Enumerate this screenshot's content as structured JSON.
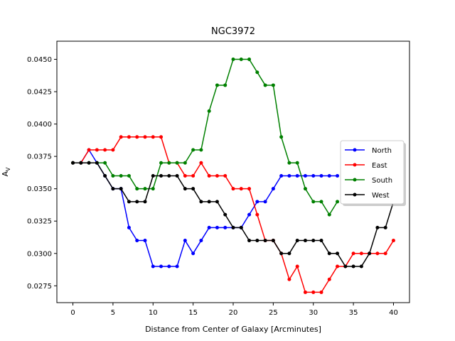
{
  "chart_data": {
    "type": "line",
    "title": "NGC3972",
    "xlabel": "Distance from Center of Galaxy [Arcminutes]",
    "ylabel": "A",
    "ylabel_sub": "V",
    "xlim": [
      -2,
      42
    ],
    "ylim": [
      0.0262,
      0.0464
    ],
    "xticks": [
      0,
      5,
      10,
      15,
      20,
      25,
      30,
      35,
      40
    ],
    "yticks": [
      0.0275,
      0.03,
      0.0325,
      0.035,
      0.0375,
      0.04,
      0.0425,
      0.045
    ],
    "ytick_labels": [
      "0.0275",
      "0.0300",
      "0.0325",
      "0.0350",
      "0.0375",
      "0.0400",
      "0.0425",
      "0.0450"
    ],
    "x": [
      0,
      1,
      2,
      3,
      4,
      5,
      6,
      7,
      8,
      9,
      10,
      11,
      12,
      13,
      14,
      15,
      16,
      17,
      18,
      19,
      20,
      21,
      22,
      23,
      24,
      25,
      26,
      27,
      28,
      29,
      30,
      31,
      32,
      33,
      34,
      35,
      36,
      37,
      38,
      39,
      40
    ],
    "legend_position": "center-right",
    "series": [
      {
        "name": "North",
        "color": "#0000ff",
        "values": [
          0.037,
          0.037,
          0.038,
          0.037,
          0.036,
          0.035,
          0.035,
          0.032,
          0.031,
          0.031,
          0.029,
          0.029,
          0.029,
          0.029,
          0.031,
          0.03,
          0.031,
          0.032,
          0.032,
          0.032,
          0.032,
          0.032,
          0.033,
          0.034,
          0.034,
          0.035,
          0.036,
          0.036,
          0.036,
          0.036,
          0.036,
          0.036,
          0.036,
          0.036,
          null,
          null,
          null,
          null,
          null,
          null,
          null
        ]
      },
      {
        "name": "East",
        "color": "#ff0000",
        "values": [
          0.037,
          0.037,
          0.038,
          0.038,
          0.038,
          0.038,
          0.039,
          0.039,
          0.039,
          0.039,
          0.039,
          0.039,
          0.037,
          0.037,
          0.036,
          0.036,
          0.037,
          0.036,
          0.036,
          0.036,
          0.035,
          0.035,
          0.035,
          0.033,
          0.031,
          0.031,
          0.03,
          0.028,
          0.029,
          0.027,
          0.027,
          0.027,
          0.028,
          0.029,
          0.029,
          0.03,
          0.03,
          0.03,
          0.03,
          0.03,
          0.031
        ]
      },
      {
        "name": "South",
        "color": "#008000",
        "values": [
          0.037,
          0.037,
          0.037,
          0.037,
          0.037,
          0.036,
          0.036,
          0.036,
          0.035,
          0.035,
          0.035,
          0.037,
          0.037,
          0.037,
          0.037,
          0.038,
          0.038,
          0.041,
          0.043,
          0.043,
          0.045,
          0.045,
          0.045,
          0.044,
          0.043,
          0.043,
          0.039,
          0.037,
          0.037,
          0.035,
          0.034,
          0.034,
          0.033,
          0.034,
          null,
          null,
          null,
          null,
          null,
          null,
          null
        ]
      },
      {
        "name": "West",
        "color": "#000000",
        "values": [
          0.037,
          0.037,
          0.037,
          0.037,
          0.036,
          0.035,
          0.035,
          0.034,
          0.034,
          0.034,
          0.036,
          0.036,
          0.036,
          0.036,
          0.035,
          0.035,
          0.034,
          0.034,
          0.034,
          0.033,
          0.032,
          0.032,
          0.031,
          0.031,
          0.031,
          0.031,
          0.03,
          0.03,
          0.031,
          0.031,
          0.031,
          0.031,
          0.03,
          0.03,
          0.029,
          0.029,
          0.029,
          0.03,
          0.032,
          0.032,
          0.034
        ]
      }
    ]
  }
}
